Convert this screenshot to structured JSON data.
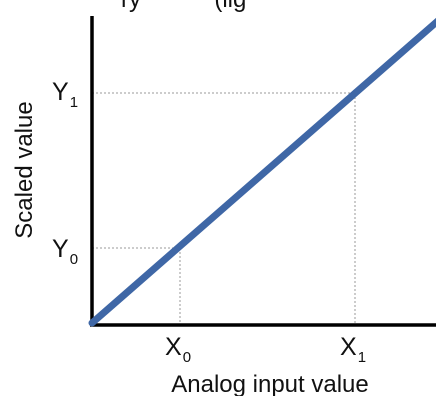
{
  "header_cutoff_text": "ry           (lig",
  "axes": {
    "xlabel": "Analog input value",
    "ylabel": "Scaled value"
  },
  "ticks": {
    "x": [
      {
        "base": "X",
        "sub": "0"
      },
      {
        "base": "X",
        "sub": "1"
      }
    ],
    "y": [
      {
        "base": "Y",
        "sub": "1"
      },
      {
        "base": "Y",
        "sub": "0"
      }
    ]
  },
  "colors": {
    "line": "#3F67A6",
    "axis": "#000000",
    "guide": "#9a9a9a",
    "text": "#111111"
  }
}
